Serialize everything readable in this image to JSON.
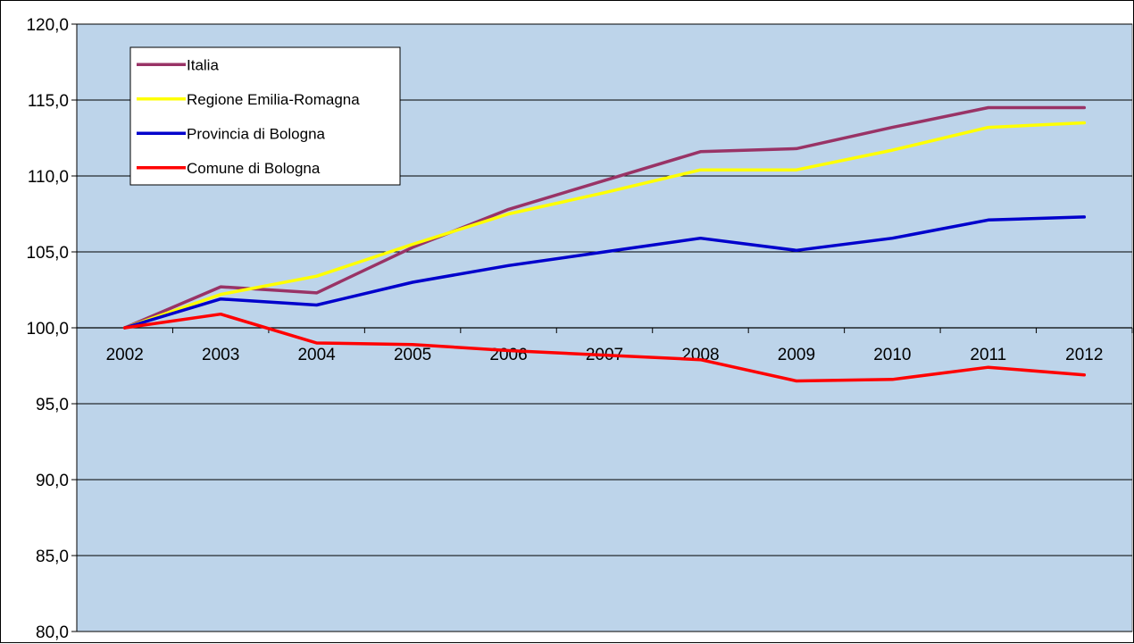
{
  "chart_data": {
    "type": "line",
    "categories": [
      "2002",
      "2003",
      "2004",
      "2005",
      "2006",
      "2007",
      "2008",
      "2009",
      "2010",
      "2011",
      "2012"
    ],
    "ylim": [
      80,
      120
    ],
    "yticks": [
      80,
      85,
      90,
      95,
      100,
      105,
      110,
      115,
      120
    ],
    "ytick_labels": [
      "80,0",
      "85,0",
      "90,0",
      "95,0",
      "100,0",
      "105,0",
      "110,0",
      "115,0",
      "120,0"
    ],
    "x_axis_crosses_at": 100,
    "grid": true,
    "plot_background": "#BDD4EA",
    "legend_position": "top-left",
    "series": [
      {
        "name": "Italia",
        "color": "#993366",
        "values": [
          100.0,
          102.7,
          102.3,
          105.3,
          107.8,
          109.7,
          111.6,
          111.8,
          113.2,
          114.5,
          114.5
        ]
      },
      {
        "name": "Regione Emilia-Romagna",
        "color": "#FFFF00",
        "values": [
          100.0,
          102.2,
          103.4,
          105.5,
          107.5,
          108.9,
          110.4,
          110.4,
          111.7,
          113.2,
          113.5
        ]
      },
      {
        "name": "Provincia di Bologna",
        "color": "#0000CC",
        "values": [
          100.0,
          101.9,
          101.5,
          103.0,
          104.1,
          105.0,
          105.9,
          105.1,
          105.9,
          107.1,
          107.3
        ]
      },
      {
        "name": "Comune di Bologna",
        "color": "#FF0000",
        "values": [
          100.0,
          100.9,
          99.0,
          98.9,
          98.5,
          98.2,
          97.9,
          96.5,
          96.6,
          97.4,
          96.9
        ]
      }
    ]
  }
}
